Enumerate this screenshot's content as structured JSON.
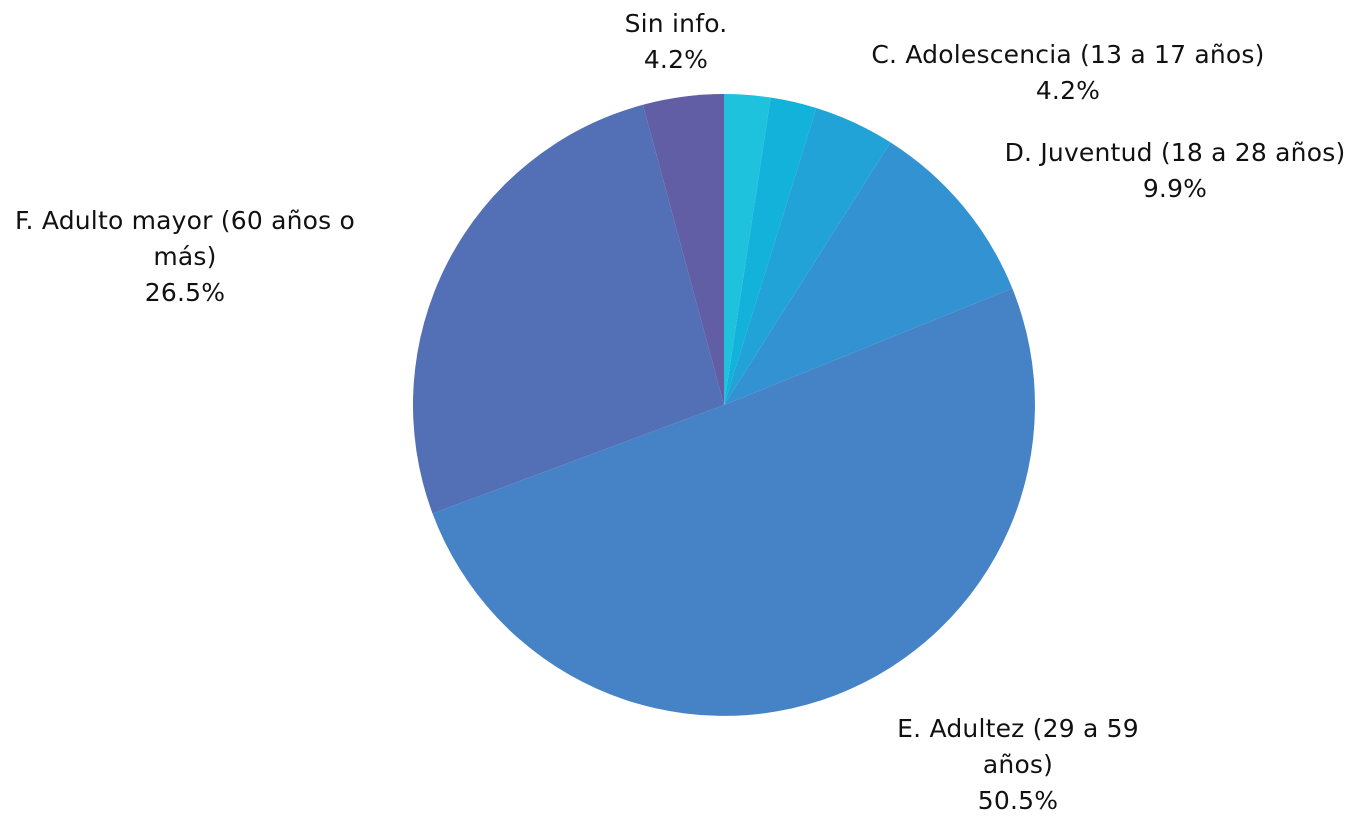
{
  "chart_data": {
    "type": "pie",
    "start_angle_deg": 0,
    "direction": "clockwise",
    "slices": [
      {
        "label": "",
        "value": 2.4,
        "color": "#1fc2dc"
      },
      {
        "label": "",
        "value": 2.4,
        "color": "#12b2da"
      },
      {
        "label": "C. Adolescencia (13 a 17 años)",
        "value": 4.2,
        "value_label": "4.2%",
        "color": "#22a3d8"
      },
      {
        "label": "D. Juventud (18 a 28 años)",
        "value": 9.9,
        "value_label": "9.9%",
        "color": "#3393d2"
      },
      {
        "label": "E. Adultez (29 a 59 años)",
        "value": 50.5,
        "value_label": "50.5%",
        "color": "#4583c6"
      },
      {
        "label": "F. Adulto mayor (60 años o más)",
        "value": 26.5,
        "value_label": "26.5%",
        "color": "#5370b7"
      },
      {
        "label": "Sin info.",
        "value": 4.2,
        "value_label": "4.2%",
        "color": "#615ea6"
      }
    ]
  },
  "labels": {
    "sin_info": {
      "line1": "Sin info.",
      "pct": "4.2%"
    },
    "adolescencia": {
      "line1": "C. Adolescencia (13 a 17 años)",
      "pct": "4.2%"
    },
    "juventud": {
      "line1": "D. Juventud (18 a 28 años)",
      "pct": "9.9%"
    },
    "adultez": {
      "line1": "E. Adultez (29 a 59",
      "line2": "años)",
      "pct": "50.5%"
    },
    "adulto_mayor": {
      "line1": "F. Adulto mayor (60 años o",
      "line2": "más)",
      "pct": "26.5%"
    }
  }
}
